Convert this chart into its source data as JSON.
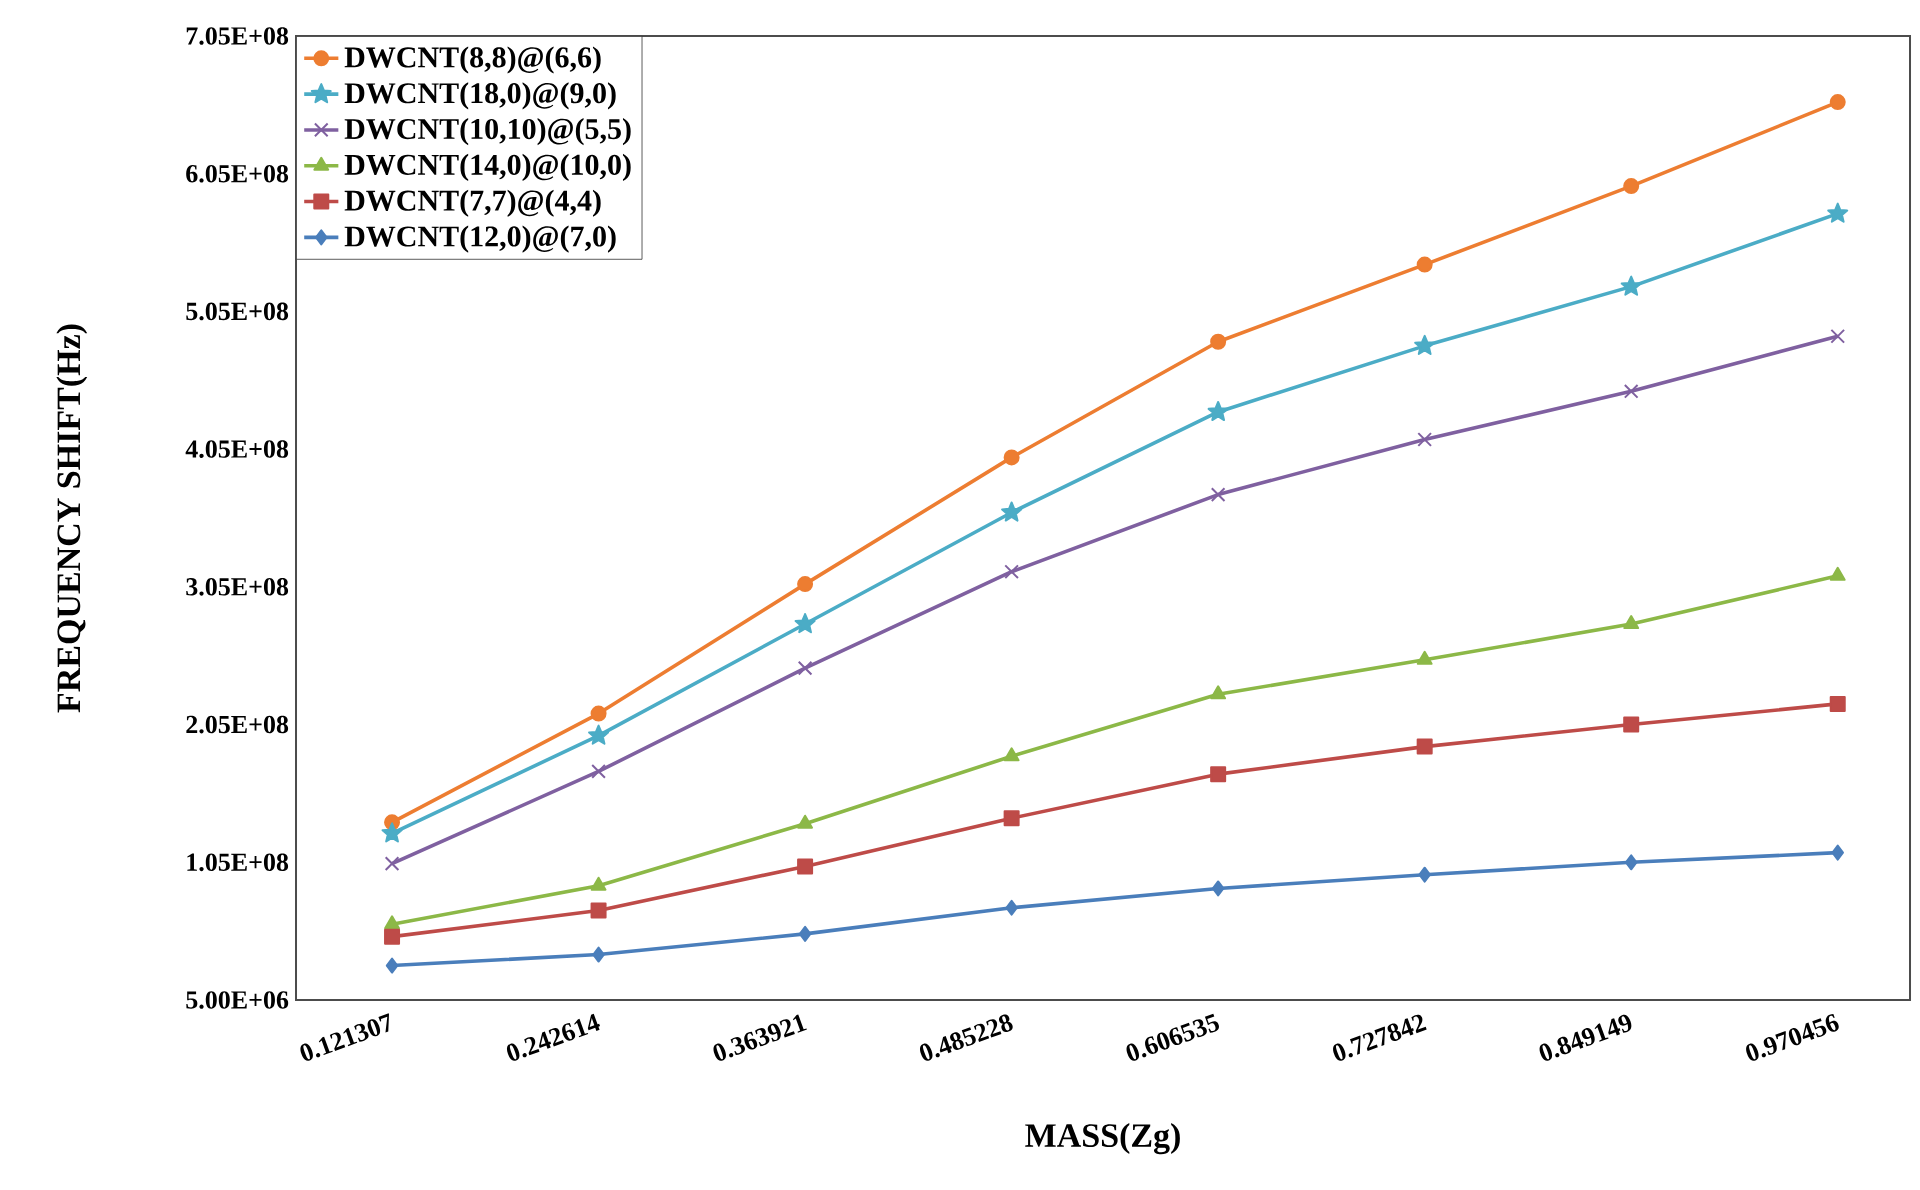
{
  "chart_data": {
    "type": "line",
    "xlabel": "MASS(Zg)",
    "ylabel": "FREQUENCY SHIFT(Hz)",
    "categories": [
      "0.121307",
      "0.242614",
      "0.363921",
      "0.485228",
      "0.606535",
      "0.727842",
      "0.849149",
      "0.970456"
    ],
    "ylim": [
      5000000,
      705000000
    ],
    "yticks": [
      {
        "value": 5000000,
        "label": "5.00E+06"
      },
      {
        "value": 105000000,
        "label": "1.05E+08"
      },
      {
        "value": 205000000,
        "label": "2.05E+08"
      },
      {
        "value": 305000000,
        "label": "3.05E+08"
      },
      {
        "value": 405000000,
        "label": "4.05E+08"
      },
      {
        "value": 505000000,
        "label": "5.05E+08"
      },
      {
        "value": 605000000,
        "label": "6.05E+08"
      },
      {
        "value": 705000000,
        "label": "7.05E+08"
      }
    ],
    "legend": "top left",
    "grid": false,
    "line_style": "solid",
    "series": [
      {
        "name": "DWCNT(8,8)@(6,6)",
        "color": "#ed7d31",
        "marker": "circle",
        "values": [
          134000000,
          213000000,
          307000000,
          399000000,
          483000000,
          539000000,
          596000000,
          657000000
        ]
      },
      {
        "name": "DWCNT(18,0)@(9,0)",
        "color": "#4bacc6",
        "marker": "star",
        "values": [
          126000000,
          197000000,
          278000000,
          359000000,
          432000000,
          480000000,
          523000000,
          576000000
        ]
      },
      {
        "name": "DWCNT(10,10)@(5,5)",
        "color": "#7f60a0",
        "marker": "cross",
        "values": [
          104000000,
          171000000,
          246000000,
          316000000,
          372000000,
          412000000,
          447000000,
          487000000
        ]
      },
      {
        "name": "DWCNT(14,0)@(10,0)",
        "color": "#8cb847",
        "marker": "triangle",
        "values": [
          60000000,
          88000000,
          133000000,
          182000000,
          227000000,
          252000000,
          278000000,
          313000000
        ]
      },
      {
        "name": "DWCNT(7,7)@(4,4)",
        "color": "#be4b48",
        "marker": "square",
        "values": [
          51000000,
          70000000,
          102000000,
          137000000,
          169000000,
          189000000,
          205000000,
          220000000
        ]
      },
      {
        "name": "DWCNT(12,0)@(7,0)",
        "color": "#4a7ebb",
        "marker": "diamond",
        "values": [
          30000000,
          38000000,
          53000000,
          72000000,
          86000000,
          96000000,
          105000000,
          112000000
        ]
      }
    ]
  }
}
